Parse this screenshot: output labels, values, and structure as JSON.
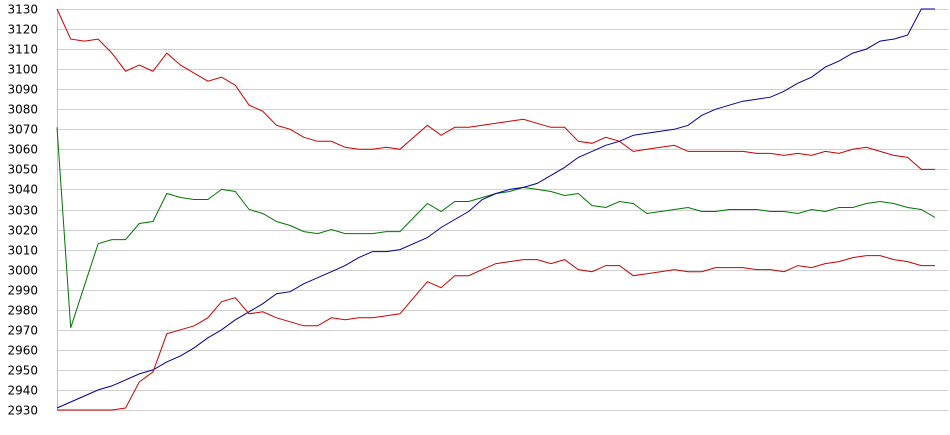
{
  "chart_data": {
    "type": "line",
    "title": "",
    "xlabel": "",
    "ylabel": "",
    "ylim": [
      2930,
      3130
    ],
    "y_ticks": [
      3130,
      3120,
      3110,
      3100,
      3090,
      3080,
      3070,
      3060,
      3050,
      3040,
      3030,
      3020,
      3010,
      3000,
      2990,
      2980,
      2970,
      2960,
      2950,
      2940,
      2930
    ],
    "y_tick_labels": [
      "3130",
      "3120",
      "3110",
      "3100",
      "3090",
      "3080",
      "3070",
      "3060",
      "3050",
      "3040",
      "3030",
      "3020",
      "3010",
      "3000",
      "2990",
      "2980",
      "2970",
      "2960",
      "2950",
      "2940",
      "2930"
    ],
    "grid": true,
    "legend": "none",
    "x": [
      0,
      1,
      2,
      3,
      4,
      5,
      6,
      7,
      8,
      9,
      10,
      11,
      12,
      13,
      14,
      15,
      16,
      17,
      18,
      19,
      20,
      21,
      22,
      23,
      24,
      25,
      26,
      27,
      28,
      29,
      30,
      31,
      32,
      33,
      34,
      35,
      36,
      37,
      38,
      39,
      40,
      41,
      42,
      43,
      44,
      45,
      46,
      47,
      48,
      49,
      50,
      51,
      52,
      53,
      54,
      55,
      56,
      57,
      58,
      59,
      60,
      61,
      62,
      63,
      64
    ],
    "series": [
      {
        "color": "#cc0000",
        "values": [
          3130,
          3115,
          3114,
          3115,
          3108,
          3099,
          3102,
          3099,
          3108,
          3102,
          3098,
          3094,
          3096,
          3092,
          3082,
          3079,
          3072,
          3070,
          3066,
          3064,
          3064,
          3061,
          3060,
          3060,
          3061,
          3060,
          3066,
          3072,
          3067,
          3071,
          3071,
          3072,
          3073,
          3074,
          3075,
          3073,
          3071,
          3071,
          3064,
          3063,
          3066,
          3064,
          3059,
          3060,
          3061,
          3062,
          3059,
          3059,
          3059,
          3059,
          3059,
          3058,
          3058,
          3057,
          3058,
          3057,
          3059,
          3058,
          3060,
          3061,
          3059,
          3057,
          3056,
          3050,
          3050
        ]
      },
      {
        "color": "#007700",
        "values": [
          3071,
          2971,
          2992,
          3013,
          3015,
          3015,
          3023,
          3024,
          3038,
          3036,
          3035,
          3035,
          3040,
          3039,
          3030,
          3028,
          3024,
          3022,
          3019,
          3018,
          3020,
          3018,
          3018,
          3018,
          3019,
          3019,
          3026,
          3033,
          3029,
          3034,
          3034,
          3036,
          3038,
          3039,
          3041,
          3040,
          3039,
          3037,
          3038,
          3032,
          3031,
          3034,
          3033,
          3028,
          3029,
          3030,
          3031,
          3029,
          3029,
          3030,
          3030,
          3030,
          3029,
          3029,
          3028,
          3030,
          3029,
          3031,
          3031,
          3033,
          3034,
          3033,
          3031,
          3030,
          3026
        ]
      },
      {
        "color": "#000099",
        "values": [
          2931,
          2934,
          2937,
          2940,
          2942,
          2945,
          2948,
          2950,
          2954,
          2957,
          2961,
          2966,
          2970,
          2975,
          2979,
          2983,
          2988,
          2989,
          2993,
          2996,
          2999,
          3002,
          3006,
          3009,
          3009,
          3010,
          3013,
          3016,
          3021,
          3025,
          3029,
          3035,
          3038,
          3040,
          3041,
          3043,
          3047,
          3051,
          3056,
          3059,
          3062,
          3064,
          3067,
          3068,
          3069,
          3070,
          3072,
          3077,
          3080,
          3082,
          3084,
          3085,
          3086,
          3089,
          3093,
          3096,
          3101,
          3104,
          3108,
          3110,
          3114,
          3115,
          3117,
          3130,
          3130
        ]
      },
      {
        "color": "#cc0000",
        "values": [
          2930,
          2930,
          2930,
          2930,
          2930,
          2931,
          2944,
          2949,
          2968,
          2970,
          2972,
          2976,
          2984,
          2986,
          2978,
          2979,
          2976,
          2974,
          2972,
          2972,
          2976,
          2975,
          2976,
          2976,
          2977,
          2978,
          2986,
          2994,
          2991,
          2997,
          2997,
          3000,
          3003,
          3004,
          3005,
          3005,
          3003,
          3005,
          3000,
          2999,
          3002,
          3002,
          2997,
          2998,
          2999,
          3000,
          2999,
          2999,
          3001,
          3001,
          3001,
          3000,
          3000,
          2999,
          3002,
          3001,
          3003,
          3004,
          3006,
          3007,
          3007,
          3005,
          3004,
          3002,
          3002
        ]
      }
    ]
  }
}
